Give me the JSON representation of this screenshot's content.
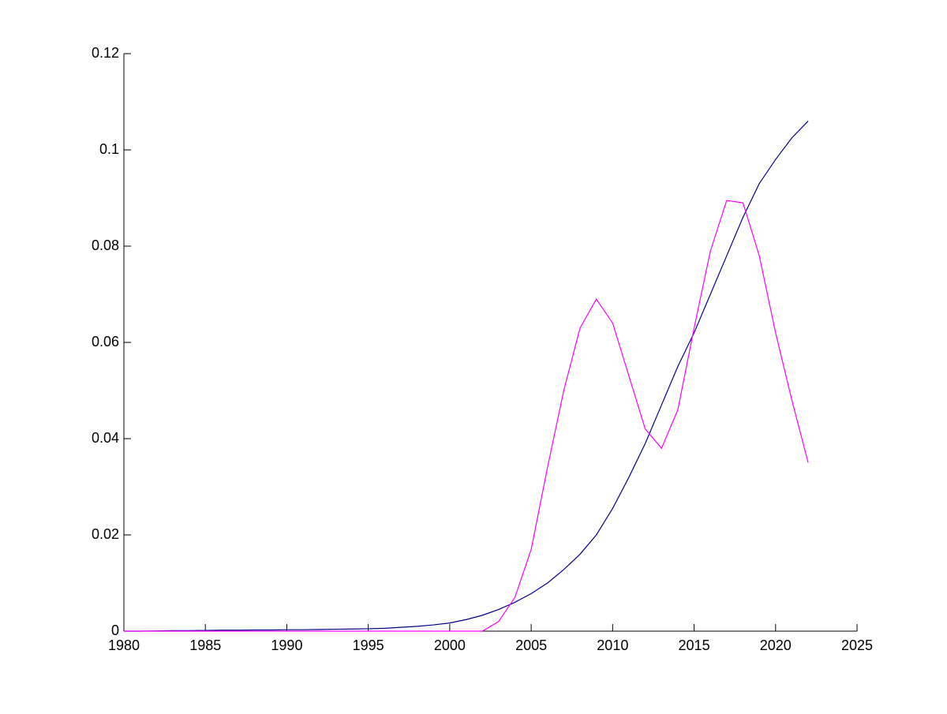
{
  "chart_data": {
    "type": "line",
    "x": [
      1980,
      1981,
      1982,
      1983,
      1984,
      1985,
      1986,
      1987,
      1988,
      1989,
      1990,
      1991,
      1992,
      1993,
      1994,
      1995,
      1996,
      1997,
      1998,
      1999,
      2000,
      2001,
      2002,
      2003,
      2004,
      2005,
      2006,
      2007,
      2008,
      2009,
      2010,
      2011,
      2012,
      2013,
      2014,
      2015,
      2016,
      2017,
      2018,
      2019,
      2020,
      2021,
      2022
    ],
    "series": [
      {
        "color": "#00008b",
        "values": [
          0,
          0,
          5e-05,
          0.0001,
          0.0001,
          0.00015,
          0.0002,
          0.0002,
          0.00025,
          0.00025,
          0.0003,
          0.0003,
          0.00035,
          0.0004,
          0.00045,
          0.0005,
          0.0006,
          0.0008,
          0.001,
          0.0013,
          0.0017,
          0.0024,
          0.0033,
          0.0045,
          0.006,
          0.0078,
          0.01,
          0.0128,
          0.016,
          0.02,
          0.0255,
          0.032,
          0.039,
          0.047,
          0.055,
          0.062,
          0.07,
          0.078,
          0.086,
          0.093,
          0.098,
          0.1025,
          0.106
        ]
      },
      {
        "color": "#ff00ff",
        "values": [
          0,
          0,
          0,
          0,
          0,
          0,
          0,
          0,
          0,
          0,
          0,
          0,
          0,
          0,
          0,
          0,
          0,
          0,
          0,
          0,
          0,
          0,
          0,
          0.002,
          0.007,
          0.017,
          0.034,
          0.05,
          0.063,
          0.069,
          0.064,
          0.053,
          0.042,
          0.038,
          0.046,
          0.063,
          0.079,
          0.0895,
          0.089,
          0.078,
          0.062,
          0.048,
          0.035
        ]
      }
    ],
    "xlim": [
      1980,
      2025
    ],
    "xticks": [
      1980,
      1985,
      1990,
      1995,
      2000,
      2005,
      2010,
      2015,
      2020,
      2025
    ],
    "ylim": [
      0,
      0.12
    ],
    "yticks": [
      0,
      0.02,
      0.04,
      0.06,
      0.08,
      0.1,
      0.12
    ]
  }
}
